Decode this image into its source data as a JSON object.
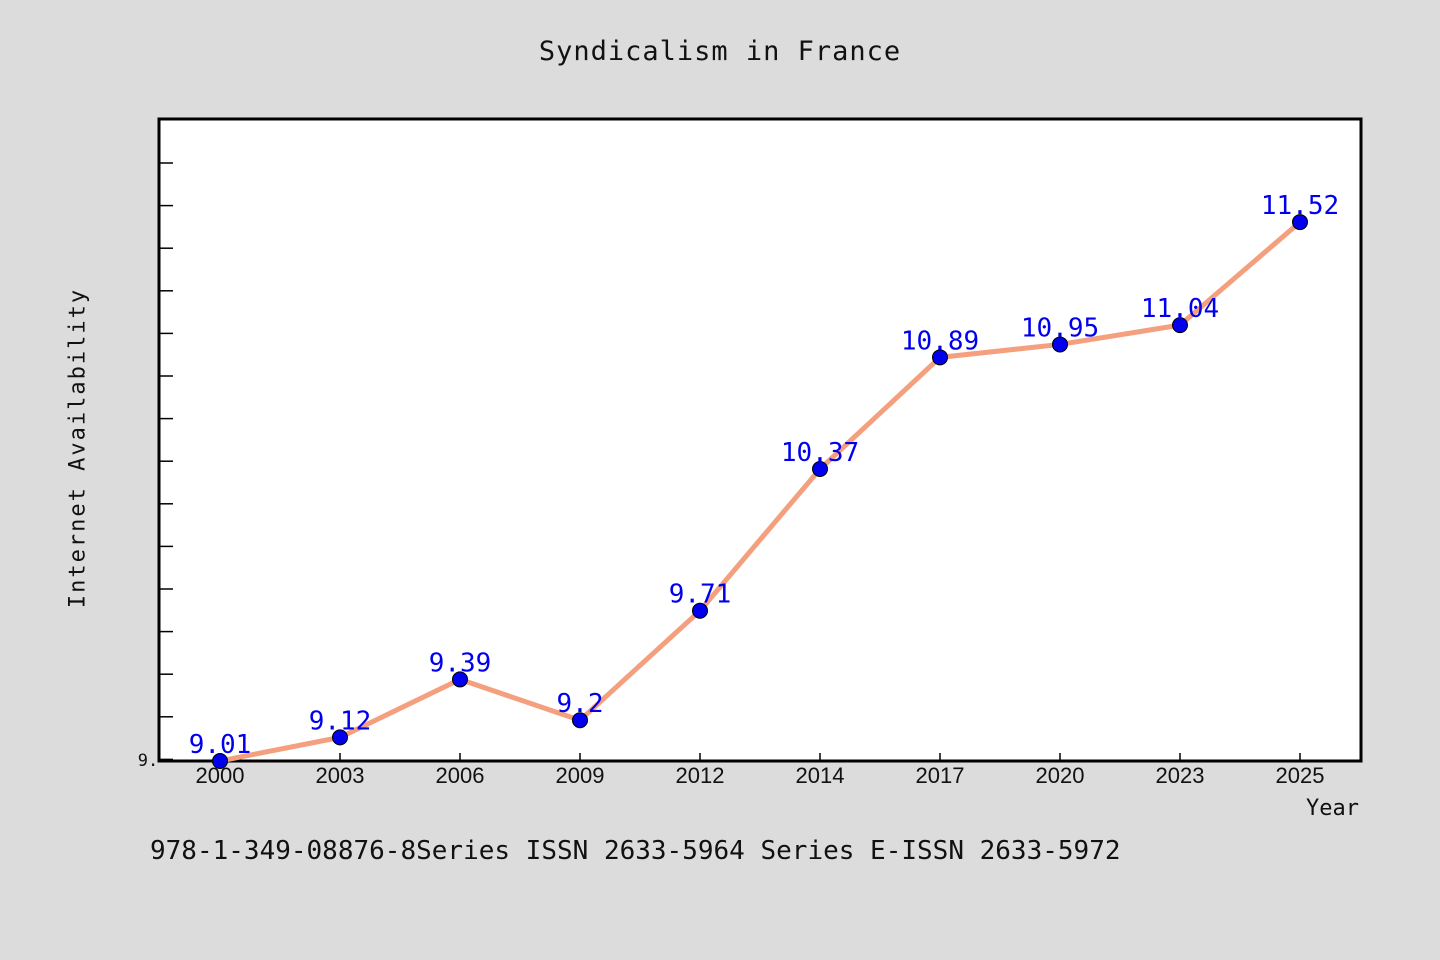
{
  "chart_data": {
    "type": "line",
    "title": "Syndicalism in France",
    "xlabel": "Year",
    "ylabel": "Internet Availability",
    "categories": [
      "2000",
      "2003",
      "2006",
      "2009",
      "2012",
      "2014",
      "2017",
      "2020",
      "2023",
      "2025"
    ],
    "series": [
      {
        "values": [
          9.01,
          9.12,
          9.39,
          9.2,
          9.71,
          10.37,
          10.89,
          10.95,
          11.04,
          11.52
        ],
        "labels": [
          "9.01",
          "9.12",
          "9.39",
          "9.2",
          "9.71",
          "10.37",
          "10.89",
          "10.95",
          "11.04",
          "11.52"
        ],
        "line_color": "#f4a07e",
        "marker_color": "#0000ee"
      }
    ],
    "y_tick_label": "9.",
    "ylim": [
      9.01,
      12.0
    ],
    "grid": false,
    "label_color": "#0000ee"
  },
  "footer": {
    "text": "978-1-349-08876-8Series ISSN 2633-5964 Series E-ISSN 2633-5972"
  }
}
